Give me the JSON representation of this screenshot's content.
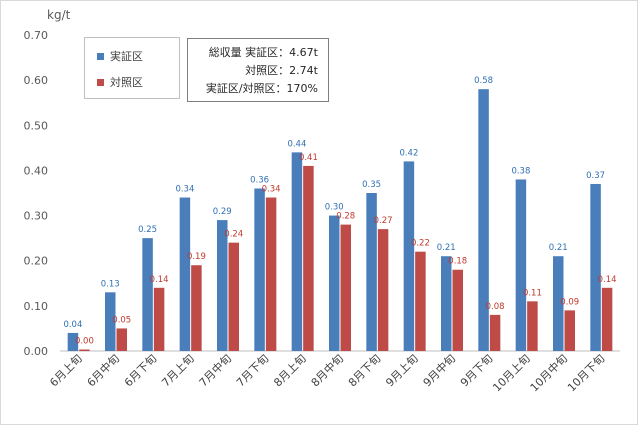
{
  "chart_data": {
    "type": "bar",
    "unit": "kg/t",
    "ylim": [
      0,
      0.7
    ],
    "yticks": [
      "0.00",
      "0.10",
      "0.20",
      "0.30",
      "0.40",
      "0.50",
      "0.60",
      "0.70"
    ],
    "categories": [
      "6月上旬",
      "6月中旬",
      "6月下旬",
      "7月上旬",
      "7月中旬",
      "7月下旬",
      "8月上旬",
      "8月中旬",
      "8月下旬",
      "9月上旬",
      "9月中旬",
      "9月下旬",
      "10月上旬",
      "10月中旬",
      "10月下旬"
    ],
    "series": [
      {
        "name": "実証区",
        "color": "#4a7ebb",
        "values": [
          0.04,
          0.13,
          0.25,
          0.34,
          0.29,
          0.36,
          0.44,
          0.3,
          0.35,
          0.42,
          0.21,
          0.58,
          0.38,
          0.21,
          0.37
        ],
        "labels": [
          "0.04",
          "0.13",
          "0.25",
          "0.34",
          "0.29",
          "0.36",
          "0.44",
          "0.30",
          "0.35",
          "0.42",
          "0.21",
          "0.58",
          "0.38",
          "0.21",
          "0.37"
        ]
      },
      {
        "name": "対照区",
        "color": "#be4b48",
        "values": [
          0.0,
          0.05,
          0.14,
          0.19,
          0.24,
          0.34,
          0.41,
          0.28,
          0.27,
          0.22,
          0.18,
          0.08,
          0.11,
          0.09,
          0.14
        ],
        "labels": [
          "0.00",
          "0.05",
          "0.14",
          "0.19",
          "0.24",
          "0.34",
          "0.41",
          "0.28",
          "0.27",
          "0.22",
          "0.18",
          "0.08",
          "0.11",
          "0.09",
          "0.14"
        ]
      }
    ],
    "grid": false,
    "legend_position": "top-left",
    "annotation": [
      "総収量 実証区：4.67t",
      "対照区：2.74t",
      "実証区/対照区：170%"
    ]
  }
}
